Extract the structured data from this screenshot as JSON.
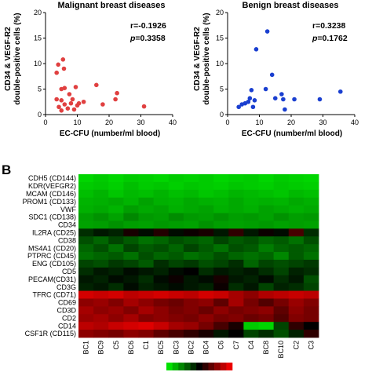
{
  "panel_b_label": "B",
  "chart_data": [
    {
      "type": "scatter",
      "title": "Malignant breast diseases",
      "xlabel": "EC-CFU (number/ml blood)",
      "ylabel": "CD34 & VEGF-R2\ndouble-positive cells (%)",
      "xlim": [
        0,
        40
      ],
      "ylim": [
        0,
        20
      ],
      "xticks": [
        0,
        10,
        20,
        30,
        40
      ],
      "yticks": [
        0,
        5,
        10,
        15,
        20
      ],
      "color": "#e04040",
      "annotation": {
        "r": "r=-0.1926",
        "p_label": "p",
        "p_value": "=0.3358"
      },
      "points": [
        {
          "x": 3.5,
          "y": 3.0
        },
        {
          "x": 3.5,
          "y": 8.2
        },
        {
          "x": 4.0,
          "y": 9.8
        },
        {
          "x": 4.2,
          "y": 1.5
        },
        {
          "x": 5.0,
          "y": 0.8
        },
        {
          "x": 5.0,
          "y": 2.8
        },
        {
          "x": 5.0,
          "y": 5.0
        },
        {
          "x": 5.5,
          "y": 10.8
        },
        {
          "x": 5.8,
          "y": 9.0
        },
        {
          "x": 6.0,
          "y": 5.2
        },
        {
          "x": 6.0,
          "y": 2.0
        },
        {
          "x": 7.0,
          "y": 1.2
        },
        {
          "x": 7.5,
          "y": 4.0
        },
        {
          "x": 8.0,
          "y": 2.2
        },
        {
          "x": 8.5,
          "y": 3.0
        },
        {
          "x": 9.0,
          "y": 1.0
        },
        {
          "x": 9.5,
          "y": 5.4
        },
        {
          "x": 10.0,
          "y": 1.8
        },
        {
          "x": 10.5,
          "y": 2.2
        },
        {
          "x": 12.0,
          "y": 2.5
        },
        {
          "x": 16.0,
          "y": 5.8
        },
        {
          "x": 18.0,
          "y": 2.0
        },
        {
          "x": 22.0,
          "y": 3.0
        },
        {
          "x": 22.5,
          "y": 4.2
        },
        {
          "x": 31.0,
          "y": 1.6
        }
      ]
    },
    {
      "type": "scatter",
      "title": "Benign breast diseases",
      "xlabel": "EC-CFU (number/ml blood)",
      "ylabel": "CD34 & VEGF-R2\ndouble-positive cells (%)",
      "xlim": [
        0,
        40
      ],
      "ylim": [
        0,
        20
      ],
      "xticks": [
        0,
        10,
        20,
        30,
        40
      ],
      "yticks": [
        0,
        5,
        10,
        15,
        20
      ],
      "color": "#1a3fd0",
      "annotation": {
        "r": "r=0.3238",
        "p_label": "p",
        "p_value": "=0.1762"
      },
      "points": [
        {
          "x": 3.5,
          "y": 1.5
        },
        {
          "x": 4.5,
          "y": 2.0
        },
        {
          "x": 5.5,
          "y": 2.2
        },
        {
          "x": 6.5,
          "y": 2.5
        },
        {
          "x": 7.0,
          "y": 3.2
        },
        {
          "x": 7.5,
          "y": 4.8
        },
        {
          "x": 8.0,
          "y": 1.5
        },
        {
          "x": 8.5,
          "y": 2.8
        },
        {
          "x": 9.0,
          "y": 12.8
        },
        {
          "x": 12.0,
          "y": 5.0
        },
        {
          "x": 12.5,
          "y": 16.3
        },
        {
          "x": 14.0,
          "y": 7.8
        },
        {
          "x": 15.0,
          "y": 3.2
        },
        {
          "x": 17.0,
          "y": 4.0
        },
        {
          "x": 17.5,
          "y": 3.0
        },
        {
          "x": 18.0,
          "y": 1.0
        },
        {
          "x": 21.0,
          "y": 3.0
        },
        {
          "x": 29.0,
          "y": 3.0
        },
        {
          "x": 35.5,
          "y": 4.5
        }
      ]
    },
    {
      "type": "heatmap",
      "row_labels": [
        "CDH5 (CD144)",
        "KDR(VEFGR2)",
        "MCAM (CD146)",
        "PROM1 (CD133)",
        "VWF",
        "SDC1 (CD138)",
        "CD34",
        "IL2RA (CD25)",
        "CD38",
        "MS4A1 (CD20)",
        "PTPRC (CD45)",
        "ENG (CD105)",
        "CD5",
        "PECAM(CD31)",
        "CD3G",
        "TFRC (CD71)",
        "CD69",
        "CD3D",
        "CD2",
        "CD14",
        "CSF1R (CD115)"
      ],
      "col_labels": [
        "BC1",
        "BC9",
        "C5",
        "BC6",
        "C1",
        "BC5",
        "BC3",
        "BC2",
        "BC4",
        "C6",
        "C7",
        "C4",
        "BC8",
        "BC10",
        "C2",
        "C3"
      ],
      "legend": "green-black-red color scale",
      "values": [
        [
          -0.95,
          -0.9,
          -0.95,
          -0.9,
          -0.92,
          -0.95,
          -0.9,
          -0.93,
          -0.9,
          -0.95,
          -0.92,
          -0.9,
          -0.95,
          -0.9,
          -0.93,
          -0.95
        ],
        [
          -0.9,
          -0.88,
          -0.92,
          -0.85,
          -0.9,
          -0.88,
          -0.92,
          -0.88,
          -0.9,
          -0.92,
          -0.88,
          -0.9,
          -0.92,
          -0.88,
          -0.9,
          -0.92
        ],
        [
          -0.85,
          -0.8,
          -0.88,
          -0.82,
          -0.85,
          -0.8,
          -0.85,
          -0.82,
          -0.88,
          -0.85,
          -0.8,
          -0.82,
          -0.85,
          -0.88,
          -0.82,
          -0.85
        ],
        [
          -0.8,
          -0.78,
          -0.75,
          -0.8,
          -0.72,
          -0.78,
          -0.8,
          -0.75,
          -0.78,
          -0.8,
          -0.75,
          -0.8,
          -0.78,
          -0.8,
          -0.75,
          -0.78
        ],
        [
          -0.78,
          -0.75,
          -0.8,
          -0.7,
          -0.75,
          -0.72,
          -0.78,
          -0.75,
          -0.72,
          -0.78,
          -0.75,
          -0.78,
          -0.72,
          -0.75,
          -0.78,
          -0.75
        ],
        [
          -0.7,
          -0.65,
          -0.72,
          -0.6,
          -0.68,
          -0.7,
          -0.62,
          -0.68,
          -0.7,
          -0.65,
          -0.7,
          -0.68,
          -0.72,
          -0.65,
          -0.7,
          -0.68
        ],
        [
          -0.72,
          -0.7,
          -0.65,
          -0.7,
          -0.72,
          -0.68,
          -0.7,
          -0.72,
          -0.65,
          -0.7,
          -0.72,
          -0.7,
          -0.68,
          -0.72,
          -0.7,
          -0.72
        ],
        [
          -0.2,
          -0.1,
          -0.15,
          0.1,
          -0.05,
          0.15,
          -0.05,
          0.05,
          0.1,
          -0.1,
          0.2,
          -0.1,
          0.05,
          -0.05,
          0.3,
          -0.2
        ],
        [
          -0.35,
          -0.45,
          -0.3,
          -0.4,
          -0.5,
          -0.45,
          -0.35,
          -0.4,
          -0.45,
          -0.3,
          -0.4,
          -0.35,
          -0.45,
          -0.4,
          -0.5,
          -0.35
        ],
        [
          -0.45,
          -0.35,
          -0.5,
          -0.3,
          -0.4,
          -0.35,
          -0.45,
          -0.3,
          -0.4,
          -0.5,
          -0.35,
          -0.4,
          -0.55,
          -0.45,
          -0.4,
          -0.45
        ],
        [
          -0.5,
          -0.45,
          -0.4,
          -0.5,
          -0.35,
          -0.45,
          -0.4,
          -0.5,
          -0.45,
          -0.35,
          -0.45,
          -0.5,
          -0.45,
          -0.6,
          -0.4,
          -0.5
        ],
        [
          -0.3,
          -0.35,
          -0.25,
          -0.3,
          -0.4,
          -0.2,
          -0.3,
          -0.25,
          -0.35,
          -0.3,
          -0.2,
          -0.45,
          -0.3,
          -0.35,
          -0.3,
          -0.25
        ],
        [
          -0.2,
          -0.1,
          -0.15,
          -0.05,
          -0.1,
          -0.15,
          -0.05,
          0.0,
          -0.2,
          -0.1,
          -0.15,
          -0.1,
          -0.2,
          -0.3,
          -0.15,
          -0.2
        ],
        [
          -0.1,
          -0.15,
          -0.05,
          -0.1,
          -0.2,
          -0.05,
          0.05,
          -0.1,
          -0.05,
          0.1,
          -0.1,
          -0.15,
          -0.05,
          -0.2,
          -0.1,
          -0.35
        ],
        [
          -0.15,
          -0.1,
          -0.2,
          -0.05,
          -0.15,
          -0.1,
          -0.05,
          -0.1,
          -0.15,
          0.05,
          -0.2,
          -0.1,
          -0.3,
          -0.15,
          -0.2,
          -0.3
        ],
        [
          0.9,
          0.85,
          0.9,
          0.8,
          0.85,
          0.9,
          0.85,
          0.8,
          0.9,
          0.85,
          0.7,
          0.6,
          0.75,
          0.8,
          0.85,
          0.8
        ],
        [
          0.6,
          0.65,
          0.55,
          0.7,
          0.6,
          0.5,
          0.45,
          0.55,
          0.6,
          0.4,
          0.7,
          0.5,
          0.35,
          0.5,
          0.65,
          0.55
        ],
        [
          0.7,
          0.6,
          0.65,
          0.55,
          0.7,
          0.6,
          0.5,
          0.55,
          0.45,
          0.6,
          0.5,
          0.55,
          0.6,
          0.4,
          0.6,
          0.5
        ],
        [
          0.65,
          0.7,
          0.6,
          0.7,
          0.55,
          0.6,
          0.55,
          0.5,
          0.6,
          0.5,
          0.55,
          0.45,
          0.5,
          0.35,
          0.55,
          0.5
        ],
        [
          0.8,
          0.75,
          0.85,
          0.9,
          0.95,
          0.85,
          0.7,
          0.65,
          0.5,
          0.3,
          0.1,
          -0.9,
          -0.95,
          -0.3,
          0.2,
          0.0
        ],
        [
          0.6,
          0.55,
          0.5,
          0.6,
          0.55,
          0.4,
          0.3,
          0.2,
          0.1,
          -0.1,
          0.0,
          -0.3,
          -0.2,
          -0.35,
          -0.15,
          0.2
        ]
      ]
    }
  ]
}
